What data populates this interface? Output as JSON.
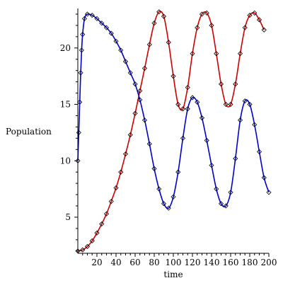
{
  "chart_data": {
    "type": "line",
    "xlabel": "time",
    "ylabel": "Population",
    "xlim": [
      0,
      200
    ],
    "ylim": [
      1.8,
      23.5
    ],
    "x_ticks": [
      20,
      40,
      60,
      80,
      100,
      120,
      140,
      160,
      180,
      200
    ],
    "x_tick_labels": [
      "20",
      "40",
      "60",
      "80",
      "100",
      "120",
      "140",
      "160",
      "180",
      "200"
    ],
    "y_ticks": [
      5,
      10,
      15,
      20
    ],
    "y_tick_labels": [
      "5",
      "10",
      "15",
      "20"
    ],
    "grid": false,
    "legend": "none",
    "series": [
      {
        "style": "line",
        "color": "#cc0000",
        "points": [
          [
            0,
            2.0
          ],
          [
            5,
            2.1
          ],
          [
            10,
            2.4
          ],
          [
            15,
            2.9
          ],
          [
            20,
            3.6
          ],
          [
            25,
            4.4
          ],
          [
            30,
            5.3
          ],
          [
            35,
            6.4
          ],
          [
            40,
            7.6
          ],
          [
            45,
            9.0
          ],
          [
            50,
            10.6
          ],
          [
            55,
            12.3
          ],
          [
            60,
            14.2
          ],
          [
            65,
            16.2
          ],
          [
            70,
            18.2
          ],
          [
            75,
            20.3
          ],
          [
            80,
            22.2
          ],
          [
            85,
            23.2
          ],
          [
            90,
            22.8
          ],
          [
            95,
            20.5
          ],
          [
            100,
            17.5
          ],
          [
            105,
            15.0
          ],
          [
            110,
            14.6
          ],
          [
            115,
            16.5
          ],
          [
            120,
            19.5
          ],
          [
            125,
            21.8
          ],
          [
            130,
            23.0
          ],
          [
            135,
            23.1
          ],
          [
            140,
            22.0
          ],
          [
            145,
            19.5
          ],
          [
            150,
            16.8
          ],
          [
            155,
            15.0
          ],
          [
            160,
            15.0
          ],
          [
            165,
            16.8
          ],
          [
            170,
            19.5
          ],
          [
            175,
            21.8
          ],
          [
            180,
            22.9
          ],
          [
            185,
            23.1
          ],
          [
            190,
            22.5
          ],
          [
            195,
            21.6
          ]
        ]
      },
      {
        "style": "line",
        "color": "#0000cc",
        "points": [
          [
            0,
            10.0
          ],
          [
            1,
            12.5
          ],
          [
            2,
            15.2
          ],
          [
            3,
            17.8
          ],
          [
            4,
            19.8
          ],
          [
            5,
            21.2
          ],
          [
            7,
            22.6
          ],
          [
            10,
            23.0
          ],
          [
            15,
            22.9
          ],
          [
            20,
            22.6
          ],
          [
            25,
            22.2
          ],
          [
            30,
            21.8
          ],
          [
            35,
            21.3
          ],
          [
            40,
            20.6
          ],
          [
            45,
            19.8
          ],
          [
            50,
            18.8
          ],
          [
            55,
            17.8
          ],
          [
            60,
            16.8
          ],
          [
            65,
            15.4
          ],
          [
            70,
            13.6
          ],
          [
            75,
            11.5
          ],
          [
            80,
            9.3
          ],
          [
            85,
            7.5
          ],
          [
            90,
            6.2
          ],
          [
            95,
            5.8
          ],
          [
            100,
            6.8
          ],
          [
            105,
            9.0
          ],
          [
            110,
            12.0
          ],
          [
            115,
            14.6
          ],
          [
            120,
            15.6
          ],
          [
            125,
            15.2
          ],
          [
            130,
            13.8
          ],
          [
            135,
            11.8
          ],
          [
            140,
            9.6
          ],
          [
            145,
            7.5
          ],
          [
            150,
            6.2
          ],
          [
            155,
            6.0
          ],
          [
            160,
            7.2
          ],
          [
            165,
            10.2
          ],
          [
            170,
            13.6
          ],
          [
            175,
            15.3
          ],
          [
            180,
            15.0
          ],
          [
            185,
            13.2
          ],
          [
            190,
            10.8
          ],
          [
            195,
            8.5
          ],
          [
            200,
            7.2
          ]
        ]
      },
      {
        "style": "markers",
        "marker": "diamond",
        "color": "#000000",
        "points": [
          [
            0,
            2.0
          ],
          [
            5,
            2.1
          ],
          [
            10,
            2.4
          ],
          [
            15,
            2.9
          ],
          [
            20,
            3.6
          ],
          [
            25,
            4.4
          ],
          [
            30,
            5.3
          ],
          [
            35,
            6.4
          ],
          [
            40,
            7.6
          ],
          [
            45,
            9.0
          ],
          [
            50,
            10.6
          ],
          [
            55,
            12.3
          ],
          [
            60,
            14.2
          ],
          [
            65,
            16.2
          ],
          [
            70,
            18.2
          ],
          [
            75,
            20.3
          ],
          [
            80,
            22.2
          ],
          [
            85,
            23.2
          ],
          [
            90,
            22.8
          ],
          [
            95,
            20.5
          ],
          [
            100,
            17.5
          ],
          [
            105,
            15.0
          ],
          [
            110,
            14.6
          ],
          [
            115,
            16.5
          ],
          [
            120,
            19.5
          ],
          [
            125,
            21.8
          ],
          [
            130,
            23.0
          ],
          [
            135,
            23.1
          ],
          [
            140,
            22.0
          ],
          [
            145,
            19.5
          ],
          [
            150,
            16.8
          ],
          [
            155,
            15.0
          ],
          [
            160,
            15.0
          ],
          [
            165,
            16.8
          ],
          [
            170,
            19.5
          ],
          [
            175,
            21.8
          ],
          [
            180,
            22.9
          ],
          [
            185,
            23.1
          ],
          [
            190,
            22.5
          ],
          [
            195,
            21.6
          ]
        ]
      },
      {
        "style": "markers",
        "marker": "diamond",
        "color": "#000000",
        "points": [
          [
            0,
            10.0
          ],
          [
            1,
            12.5
          ],
          [
            2,
            15.2
          ],
          [
            3,
            17.8
          ],
          [
            4,
            19.8
          ],
          [
            5,
            21.2
          ],
          [
            7,
            22.6
          ],
          [
            10,
            23.0
          ],
          [
            15,
            22.9
          ],
          [
            20,
            22.6
          ],
          [
            25,
            22.2
          ],
          [
            30,
            21.8
          ],
          [
            35,
            21.3
          ],
          [
            40,
            20.6
          ],
          [
            45,
            19.8
          ],
          [
            50,
            18.8
          ],
          [
            55,
            17.8
          ],
          [
            60,
            16.8
          ],
          [
            65,
            15.4
          ],
          [
            70,
            13.6
          ],
          [
            75,
            11.5
          ],
          [
            80,
            9.3
          ],
          [
            85,
            7.5
          ],
          [
            90,
            6.2
          ],
          [
            95,
            5.8
          ],
          [
            100,
            6.8
          ],
          [
            105,
            9.0
          ],
          [
            110,
            12.0
          ],
          [
            115,
            14.6
          ],
          [
            120,
            15.6
          ],
          [
            125,
            15.2
          ],
          [
            130,
            13.8
          ],
          [
            135,
            11.8
          ],
          [
            140,
            9.6
          ],
          [
            145,
            7.5
          ],
          [
            150,
            6.2
          ],
          [
            155,
            6.0
          ],
          [
            160,
            7.2
          ],
          [
            165,
            10.2
          ],
          [
            170,
            13.6
          ],
          [
            175,
            15.3
          ],
          [
            180,
            15.0
          ],
          [
            185,
            13.2
          ],
          [
            190,
            10.8
          ],
          [
            195,
            8.5
          ],
          [
            200,
            7.2
          ]
        ]
      }
    ]
  }
}
